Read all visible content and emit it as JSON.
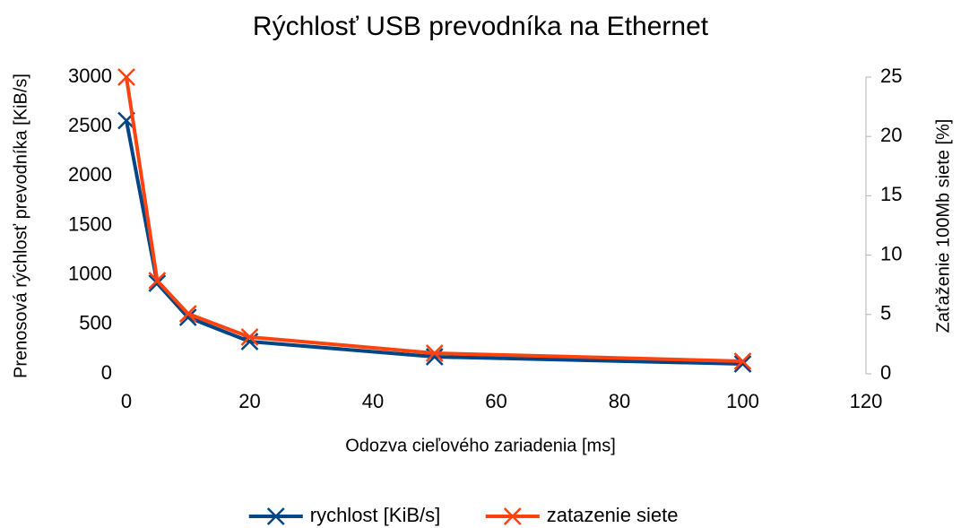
{
  "chart_data": {
    "type": "line",
    "title": "Rýchlosť USB prevodníka na Ethernet",
    "x_label": "Odozva cieľového zariadenia [ms]",
    "y_label": "Prenosová rýchlosť prevodníka [KiB/s]",
    "y2_label": "Zaťaženie 100Mb siete [%]",
    "x": [
      0,
      5,
      10,
      20,
      50,
      100
    ],
    "series": [
      {
        "name": "rychlost [KiB/s]",
        "color": "#004586",
        "values": [
          2560,
          915,
          571,
          326,
          172,
          100
        ]
      },
      {
        "name": "zatazenie siete",
        "color": "#ff420e",
        "axis": "y2",
        "values": [
          25,
          7.85,
          5.06,
          3.1,
          1.74,
          1.06
        ]
      }
    ],
    "xlim": [
      0,
      120
    ],
    "xticks": [
      0,
      20,
      40,
      60,
      80,
      100,
      120
    ],
    "ylim": [
      0,
      3000
    ],
    "yticks": [
      0,
      500,
      1000,
      1500,
      2000,
      2500,
      3000
    ],
    "y2lim": [
      0,
      25
    ],
    "y2ticks": [
      0,
      5,
      10,
      15,
      20,
      25
    ],
    "grid": false,
    "legend": "bottom"
  }
}
